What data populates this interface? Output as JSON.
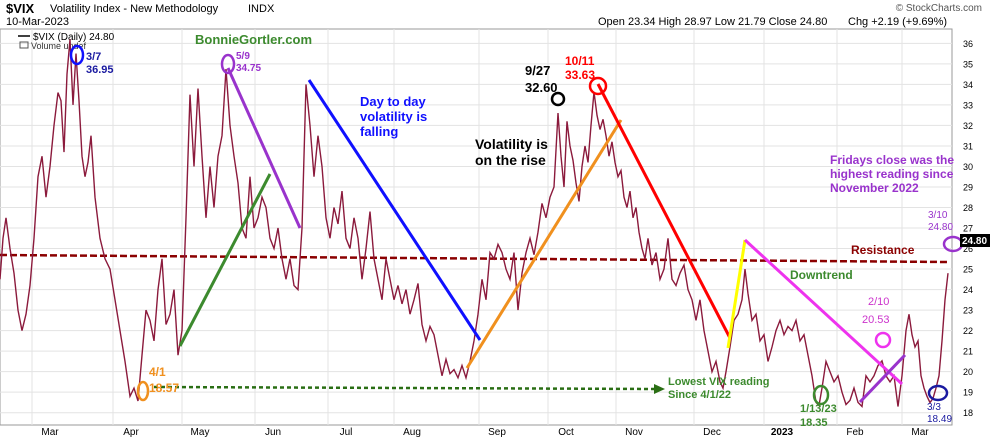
{
  "header": {
    "ticker": "$VIX",
    "name": "Volatility Index - New Methodology",
    "exchange": "INDX",
    "date": "10-Mar-2023",
    "ohlc": "Open 23.34  High 28.97  Low 21.79  Close 24.80",
    "chg": "Chg +2.19 (+9.69%)",
    "brand": "© StockCharts.com"
  },
  "legend": {
    "series": "$VIX (Daily) 24.80",
    "volume": "Volume undef"
  },
  "chart_data": {
    "type": "line",
    "ylim": [
      17.4,
      36.7
    ],
    "yticks": [
      18,
      19,
      20,
      21,
      22,
      23,
      24,
      25,
      26,
      27,
      28,
      29,
      30,
      31,
      32,
      33,
      34,
      35,
      36
    ],
    "xticks": [
      "Mar",
      "Apr",
      "May",
      "Jun",
      "Jul",
      "Aug",
      "Sep",
      "Oct",
      "Nov",
      "Dec",
      "2023",
      "Feb",
      "Mar"
    ],
    "series": [
      {
        "values": [
          [
            0,
            24.5
          ],
          [
            3,
            26.5
          ],
          [
            6,
            27.5
          ],
          [
            10,
            26
          ],
          [
            14,
            24.8
          ],
          [
            18,
            23
          ],
          [
            22,
            22
          ],
          [
            26,
            22.8
          ],
          [
            30,
            24.2
          ],
          [
            34,
            26.5
          ],
          [
            38,
            29.5
          ],
          [
            42,
            30.5
          ],
          [
            46,
            28.5
          ],
          [
            50,
            30
          ],
          [
            54,
            32
          ],
          [
            58,
            33.6
          ],
          [
            61,
            33.2
          ],
          [
            64,
            30.7
          ],
          [
            67,
            34.5
          ],
          [
            70,
            36.2
          ],
          [
            73,
            33
          ],
          [
            76,
            35.5
          ],
          [
            79,
            33.2
          ],
          [
            82,
            30.5
          ],
          [
            85,
            29.5
          ],
          [
            88,
            30.2
          ],
          [
            91,
            31.5
          ],
          [
            95,
            28.5
          ],
          [
            100,
            26.5
          ],
          [
            105,
            25.5
          ],
          [
            110,
            25
          ],
          [
            115,
            23.5
          ],
          [
            120,
            22
          ],
          [
            125,
            20.5
          ],
          [
            130,
            18.8
          ],
          [
            134,
            19.2
          ],
          [
            138,
            18.57
          ],
          [
            142,
            20.8
          ],
          [
            146,
            23
          ],
          [
            150,
            22.5
          ],
          [
            154,
            21.5
          ],
          [
            158,
            24
          ],
          [
            162,
            25.5
          ],
          [
            166,
            22.3
          ],
          [
            170,
            22.8
          ],
          [
            174,
            24
          ],
          [
            178,
            20.8
          ],
          [
            182,
            22
          ],
          [
            186,
            27.5
          ],
          [
            190,
            33.5
          ],
          [
            194,
            30
          ],
          [
            198,
            33.8
          ],
          [
            202,
            30.5
          ],
          [
            206,
            27.5
          ],
          [
            210,
            30
          ],
          [
            214,
            28
          ],
          [
            218,
            30.5
          ],
          [
            222,
            31.5
          ],
          [
            226,
            34.75
          ],
          [
            230,
            32
          ],
          [
            234,
            30.5
          ],
          [
            238,
            29.2
          ],
          [
            242,
            27
          ],
          [
            246,
            26.5
          ],
          [
            250,
            29.5
          ],
          [
            254,
            27
          ],
          [
            258,
            27.5
          ],
          [
            262,
            28.5
          ],
          [
            266,
            28
          ],
          [
            270,
            26.5
          ],
          [
            274,
            26
          ],
          [
            278,
            27
          ],
          [
            282,
            25.5
          ],
          [
            286,
            24.5
          ],
          [
            290,
            25.5
          ],
          [
            294,
            24.2
          ],
          [
            298,
            24
          ],
          [
            302,
            27
          ],
          [
            306,
            34
          ],
          [
            310,
            32
          ],
          [
            314,
            29.5
          ],
          [
            318,
            31.5
          ],
          [
            322,
            30
          ],
          [
            326,
            27.5
          ],
          [
            330,
            26.5
          ],
          [
            334,
            28
          ],
          [
            338,
            27.2
          ],
          [
            342,
            28.8
          ],
          [
            346,
            26.5
          ],
          [
            350,
            26
          ],
          [
            354,
            27.5
          ],
          [
            358,
            26.5
          ],
          [
            362,
            24.5
          ],
          [
            366,
            26
          ],
          [
            370,
            27.8
          ],
          [
            374,
            25.5
          ],
          [
            378,
            24.5
          ],
          [
            382,
            23.5
          ],
          [
            386,
            25.5
          ],
          [
            390,
            24.5
          ],
          [
            394,
            23.5
          ],
          [
            398,
            24.2
          ],
          [
            402,
            23.3
          ],
          [
            406,
            24
          ],
          [
            410,
            22.8
          ],
          [
            414,
            23.5
          ],
          [
            418,
            24.3
          ],
          [
            422,
            22.3
          ],
          [
            426,
            21.5
          ],
          [
            430,
            22.2
          ],
          [
            434,
            21.8
          ],
          [
            438,
            20.8
          ],
          [
            442,
            19.8
          ],
          [
            446,
            20.6
          ],
          [
            450,
            19.9
          ],
          [
            454,
            20.1
          ],
          [
            458,
            19.7
          ],
          [
            462,
            20.3
          ],
          [
            466,
            19.7
          ],
          [
            470,
            20.5
          ],
          [
            474,
            21.5
          ],
          [
            478,
            22.8
          ],
          [
            482,
            24.5
          ],
          [
            486,
            23.5
          ],
          [
            490,
            25.8
          ],
          [
            494,
            25.5
          ],
          [
            498,
            26.2
          ],
          [
            502,
            25.8
          ],
          [
            506,
            25
          ],
          [
            510,
            24.5
          ],
          [
            514,
            25.8
          ],
          [
            518,
            23
          ],
          [
            522,
            24.8
          ],
          [
            526,
            25.8
          ],
          [
            530,
            26.5
          ],
          [
            534,
            25.7
          ],
          [
            538,
            26.8
          ],
          [
            542,
            28.2
          ],
          [
            546,
            27.5
          ],
          [
            550,
            28.5
          ],
          [
            554,
            29
          ],
          [
            558,
            32.6
          ],
          [
            561,
            30.5
          ],
          [
            564,
            29
          ],
          [
            567,
            32.2
          ],
          [
            570,
            31
          ],
          [
            573,
            30.3
          ],
          [
            576,
            29.2
          ],
          [
            579,
            28.3
          ],
          [
            582,
            30
          ],
          [
            585,
            31
          ],
          [
            588,
            30.2
          ],
          [
            591,
            32
          ],
          [
            594,
            33.63
          ],
          [
            597,
            32.5
          ],
          [
            600,
            31.8
          ],
          [
            603,
            32.3
          ],
          [
            606,
            31.5
          ],
          [
            609,
            30.5
          ],
          [
            612,
            31.2
          ],
          [
            615,
            30.2
          ],
          [
            618,
            29.5
          ],
          [
            621,
            29.8
          ],
          [
            624,
            28.5
          ],
          [
            627,
            28
          ],
          [
            630,
            28.8
          ],
          [
            633,
            27.5
          ],
          [
            636,
            28
          ],
          [
            639,
            26.8
          ],
          [
            642,
            26
          ],
          [
            645,
            25.5
          ],
          [
            648,
            26.5
          ],
          [
            652,
            25.2
          ],
          [
            656,
            25.8
          ],
          [
            660,
            24.5
          ],
          [
            664,
            25
          ],
          [
            668,
            26.5
          ],
          [
            672,
            24.5
          ],
          [
            676,
            24.2
          ],
          [
            680,
            24.8
          ],
          [
            684,
            25.2
          ],
          [
            688,
            24
          ],
          [
            692,
            23.5
          ],
          [
            696,
            22.5
          ],
          [
            700,
            23.5
          ],
          [
            704,
            22
          ],
          [
            708,
            21
          ],
          [
            712,
            20
          ],
          [
            716,
            20.5
          ],
          [
            720,
            19.5
          ],
          [
            723,
            19.2
          ],
          [
            726,
            20
          ],
          [
            730,
            21.2
          ],
          [
            734,
            22.5
          ],
          [
            738,
            22.8
          ],
          [
            742,
            23.5
          ],
          [
            745,
            25
          ],
          [
            748,
            23.8
          ],
          [
            752,
            22.5
          ],
          [
            756,
            22.8
          ],
          [
            760,
            21.5
          ],
          [
            764,
            21.8
          ],
          [
            768,
            20.5
          ],
          [
            772,
            21.2
          ],
          [
            776,
            22
          ],
          [
            780,
            22.5
          ],
          [
            784,
            21.8
          ],
          [
            788,
            22.2
          ],
          [
            792,
            22
          ],
          [
            796,
            22.5
          ],
          [
            800,
            21.5
          ],
          [
            804,
            21.8
          ],
          [
            808,
            20.8
          ],
          [
            812,
            19.8
          ],
          [
            816,
            18.5
          ],
          [
            819,
            18.35
          ],
          [
            822,
            19.2
          ],
          [
            826,
            20.5
          ],
          [
            830,
            20
          ],
          [
            834,
            19.5
          ],
          [
            838,
            19.8
          ],
          [
            842,
            19
          ],
          [
            846,
            18.4
          ],
          [
            850,
            18.6
          ],
          [
            854,
            19.2
          ],
          [
            858,
            18.5
          ],
          [
            862,
            18.3
          ],
          [
            866,
            19.8
          ],
          [
            870,
            19.5
          ],
          [
            874,
            19.8
          ],
          [
            878,
            20.3
          ],
          [
            882,
            20.53
          ],
          [
            886,
            19.8
          ],
          [
            890,
            19.5
          ],
          [
            894,
            19.8
          ],
          [
            898,
            18.3
          ],
          [
            902,
            19.8
          ],
          [
            906,
            22
          ],
          [
            909,
            22.8
          ],
          [
            912,
            21.8
          ],
          [
            915,
            21.2
          ],
          [
            918,
            21.5
          ],
          [
            921,
            19.8
          ],
          [
            924,
            19.2
          ],
          [
            927,
            18.8
          ],
          [
            930,
            18.49
          ],
          [
            933,
            18.7
          ],
          [
            936,
            19.2
          ],
          [
            939,
            19.8
          ],
          [
            942,
            21.5
          ],
          [
            945,
            23.5
          ],
          [
            948,
            24.8
          ]
        ]
      }
    ]
  },
  "annotations": {
    "brand": "BonnieGortler.com",
    "a37_date": "3/7",
    "a37_val": "36.95",
    "a59_date": "5/9",
    "a59_val": "34.75",
    "a41_date": "4/1",
    "a41_val": "18.57",
    "falling_1": "Day to day",
    "falling_2": "volatility is",
    "falling_3": "falling",
    "a927_date": "9/27",
    "a927_val": "32.60",
    "a1011_date": "10/11",
    "a1011_val": "33.63",
    "rise_1": "Volatility is",
    "rise_2": "on the rise",
    "fri_1": "Fridays close was the",
    "fri_2": "highest reading since",
    "fri_3": "November 2022",
    "a310_date": "3/10",
    "a310_val": "24.80",
    "resistance": "Resistance",
    "downtrend": "Downtrend",
    "a210_date": "2/10",
    "a210_val": "20.53",
    "lowest_1": "Lowest VIX reading",
    "lowest_2": "Since 4/1/22",
    "a113_date": "1/13/23",
    "a113_val": "18.35",
    "a33_date": "3/3",
    "a33_val": "18.49",
    "last_price": "24.80"
  },
  "colors": {
    "line": "#8b1a3c",
    "grid": "#e3e3e3",
    "resistance": "#8b0000",
    "green": "#3c8a2e",
    "purple": "#9933cc",
    "blue": "#1010ff",
    "orange": "#f0901e",
    "red": "#ff0000",
    "yellow": "#ffff00",
    "magenta": "#ee33ee",
    "navy": "#1a1aa0",
    "darkgreen": "#2a6e14"
  }
}
